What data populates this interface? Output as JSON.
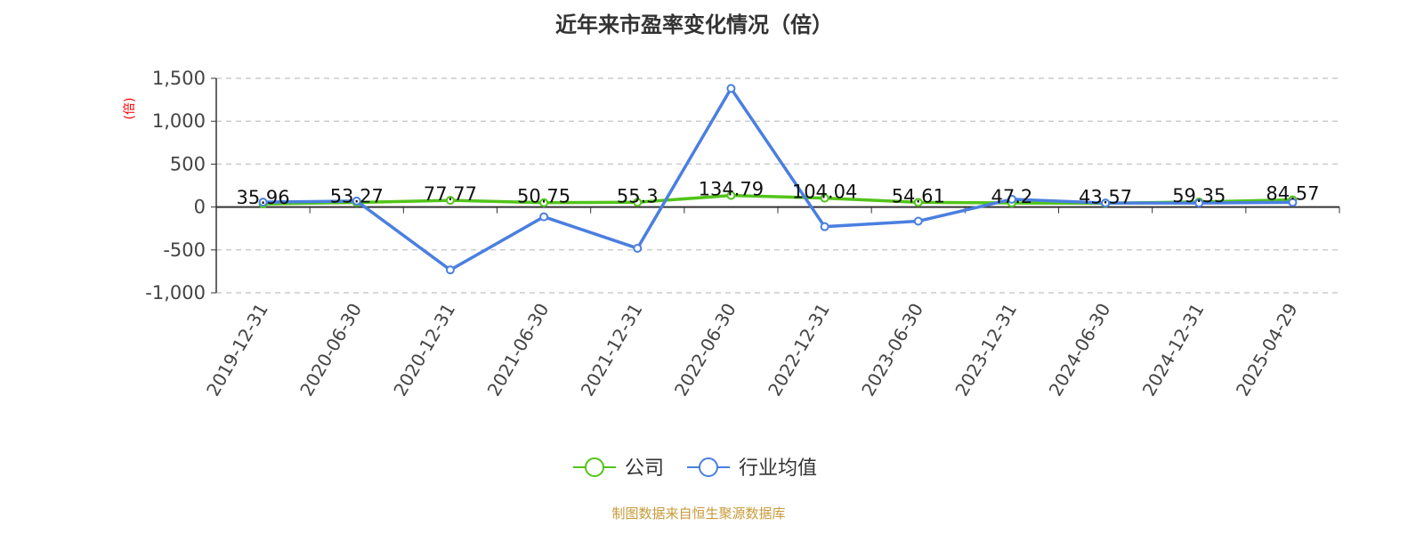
{
  "chart_data": {
    "type": "line",
    "title": "近年来市盈率变化情况（倍）",
    "ylabel": "(倍)",
    "ylim": [
      -1000,
      1500
    ],
    "yticks": [
      -1000,
      -500,
      0,
      500,
      1000,
      1500
    ],
    "ytick_labels": [
      "-1,000",
      "-500",
      "0",
      "500",
      "1,000",
      "1,500"
    ],
    "grid": true,
    "legend": "bottom",
    "categories": [
      "2019-12-31",
      "2020-06-30",
      "2020-12-31",
      "2021-06-30",
      "2021-12-31",
      "2022-06-30",
      "2022-12-31",
      "2023-06-30",
      "2023-12-31",
      "2024-06-30",
      "2024-12-31",
      "2025-04-29"
    ],
    "series": [
      {
        "name": "公司",
        "color": "#52c41a",
        "values": [
          35.96,
          53.27,
          77.77,
          50.75,
          55.3,
          134.79,
          104.04,
          54.61,
          47.2,
          43.57,
          59.35,
          84.57
        ],
        "labels": [
          "35.96",
          "53.27",
          "77.77",
          "50.75",
          "55.3",
          "134.79",
          "104.04",
          "54.61",
          "47.2",
          "43.57",
          "59.35",
          "84.57"
        ]
      },
      {
        "name": "行业均值",
        "color": "#4a7fe0",
        "values": [
          57,
          70,
          -733,
          -114,
          -481,
          1382,
          -229,
          -165,
          91,
          47,
          47,
          54
        ]
      }
    ]
  },
  "footer": "制图数据来自恒生聚源数据库"
}
